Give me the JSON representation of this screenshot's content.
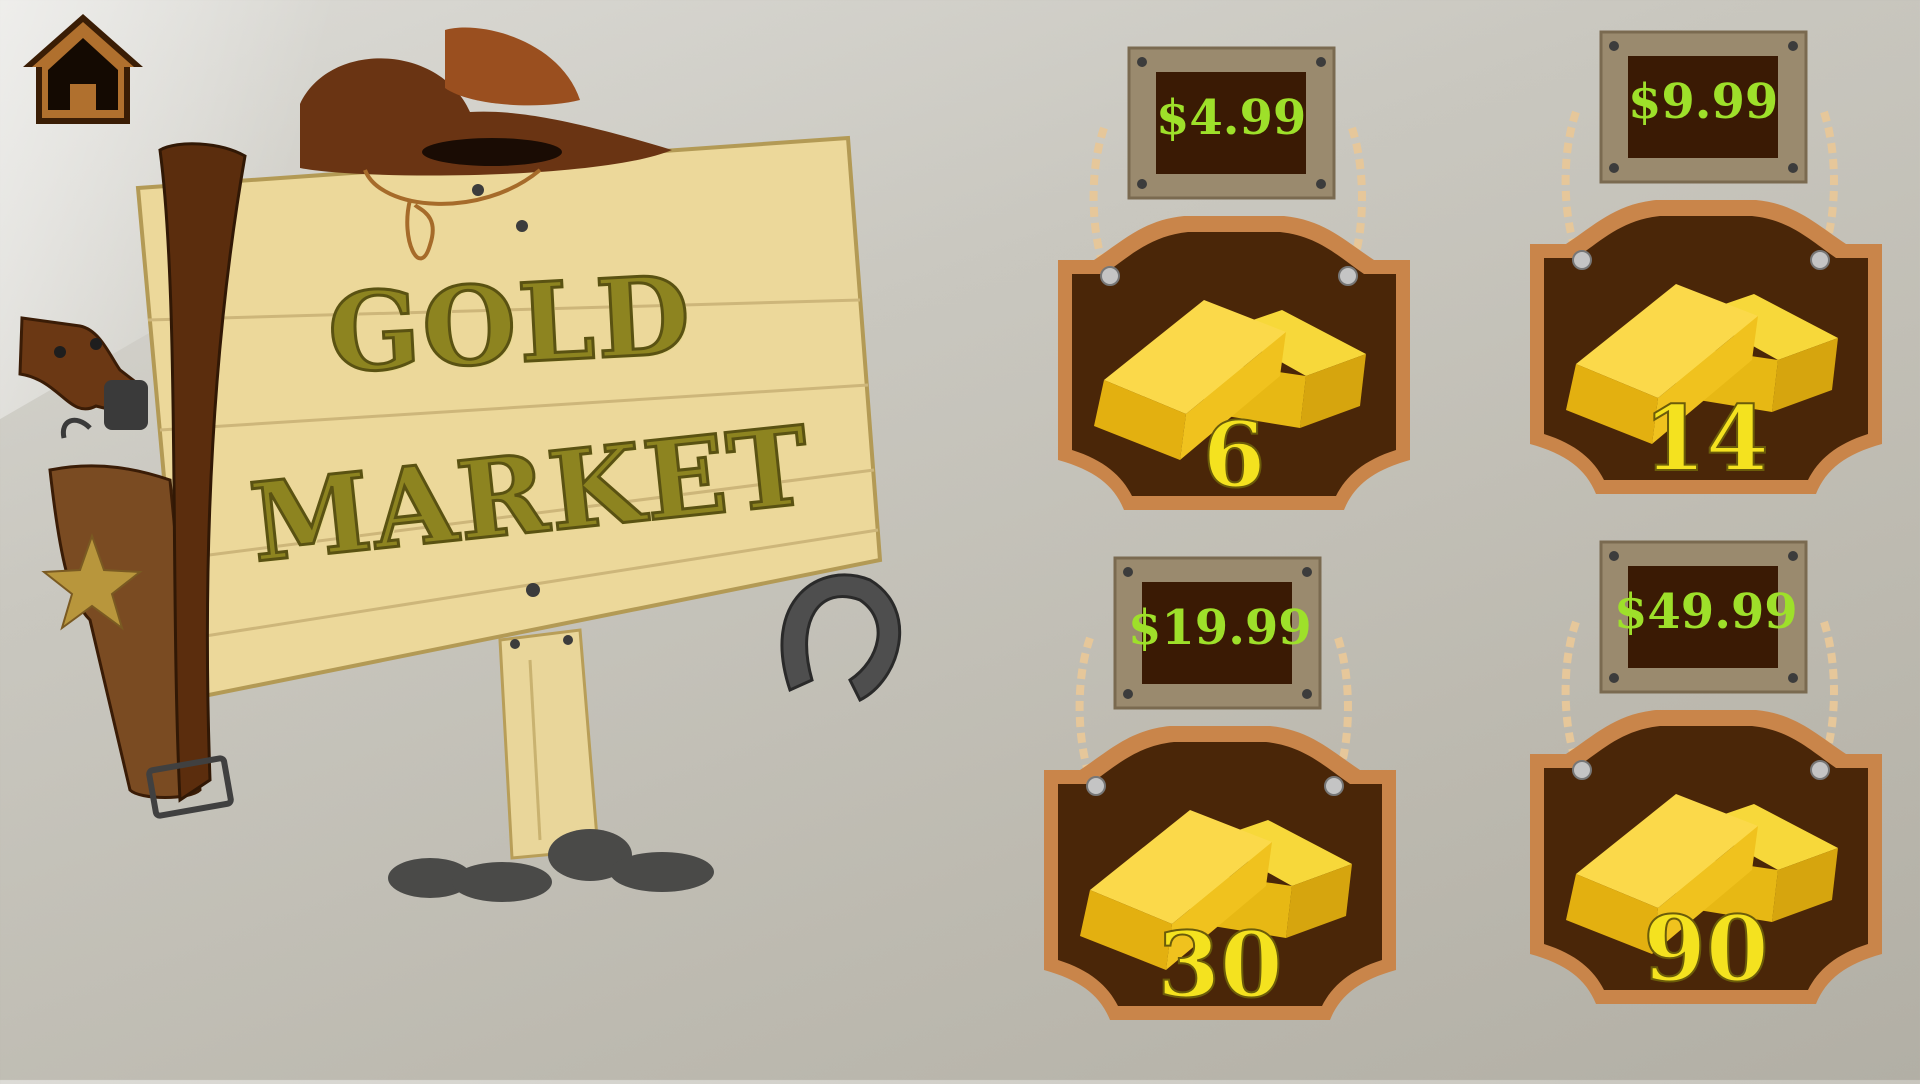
{
  "home": {
    "icon": "home-icon"
  },
  "sign": {
    "line1": "GOLD",
    "line2": "MARKET"
  },
  "offers": [
    {
      "price": "$4.99",
      "amount": "6"
    },
    {
      "price": "$9.99",
      "amount": "14"
    },
    {
      "price": "$19.99",
      "amount": "30"
    },
    {
      "price": "$49.99",
      "amount": "90"
    }
  ],
  "colors": {
    "price_text": "#9ee02a",
    "amount_text": "#f4e21f",
    "board_dark": "#4a2608",
    "board_border": "#c9854a",
    "gold_bar": "#f5c517"
  }
}
